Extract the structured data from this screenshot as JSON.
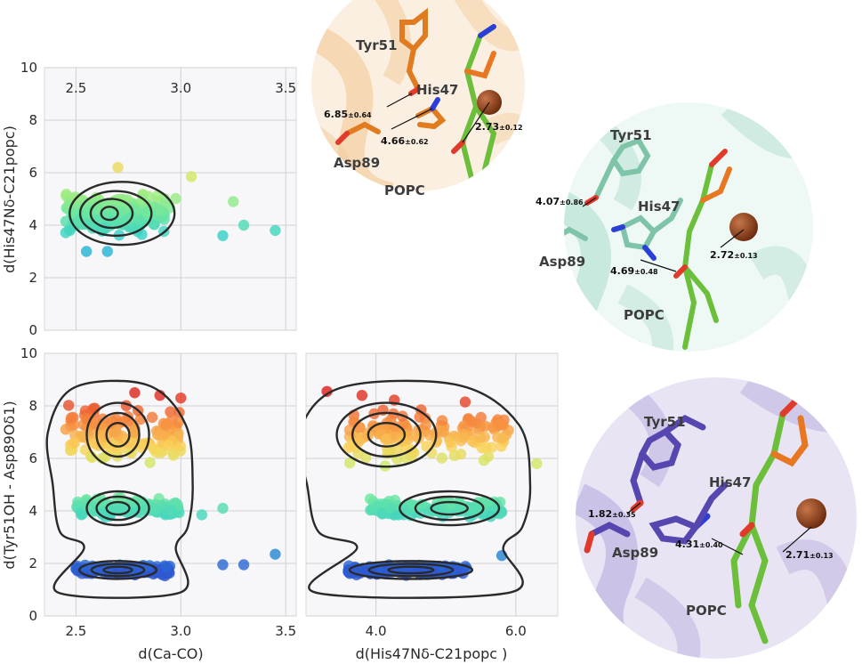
{
  "chart_data": [
    {
      "type": "scatter",
      "panel": "top-left",
      "xlabel": "",
      "ylabel": "d(His47Nδ-C21popc)",
      "xlim": [
        2.35,
        3.55
      ],
      "ylim": [
        0,
        10
      ],
      "xticks": [
        2.5,
        3.0,
        3.5
      ],
      "yticks": [
        0,
        2,
        4,
        6,
        8,
        10
      ],
      "grid": true,
      "dense_region": {
        "x": [
          2.45,
          3.0
        ],
        "y": [
          3.2,
          5.6
        ]
      },
      "outliers": [
        [
          2.7,
          6.2
        ],
        [
          3.05,
          5.85
        ],
        [
          3.25,
          4.9
        ],
        [
          3.2,
          3.6
        ],
        [
          3.45,
          3.8
        ],
        [
          3.3,
          4.0
        ],
        [
          2.55,
          3.0
        ],
        [
          2.65,
          3.0
        ]
      ],
      "kde_levels": [
        {
          "cx": 2.72,
          "cy": 4.45,
          "rx": 0.25,
          "ry": 1.2
        },
        {
          "cx": 2.69,
          "cy": 4.45,
          "rx": 0.17,
          "ry": 0.85
        },
        {
          "cx": 2.67,
          "cy": 4.45,
          "rx": 0.1,
          "ry": 0.55
        },
        {
          "cx": 2.66,
          "cy": 4.45,
          "rx": 0.04,
          "ry": 0.25
        }
      ]
    },
    {
      "type": "scatter",
      "panel": "bottom-left",
      "xlabel": "d(Ca-CO)",
      "ylabel": "d(Tyr51OH - Asp89Oδ1)",
      "xlim": [
        2.35,
        3.55
      ],
      "ylim": [
        0,
        10
      ],
      "xticks": [
        2.5,
        3.0,
        3.5
      ],
      "yticks": [
        0,
        2,
        4,
        6,
        8,
        10
      ],
      "grid": true,
      "clusters": [
        {
          "y": 1.75,
          "x": [
            2.5,
            2.95
          ],
          "spread": 0.25
        },
        {
          "y": 4.1,
          "x": [
            2.5,
            3.0
          ],
          "spread": 0.45
        },
        {
          "y": 6.9,
          "x": [
            2.45,
            3.0
          ],
          "spread": 1.3
        }
      ],
      "outliers": [
        [
          2.78,
          8.5
        ],
        [
          2.9,
          8.4
        ],
        [
          3.0,
          8.3
        ],
        [
          3.45,
          2.35
        ],
        [
          3.3,
          1.95
        ],
        [
          3.2,
          1.95
        ],
        [
          3.2,
          4.1
        ],
        [
          3.1,
          3.85
        ]
      ],
      "kde_outline_levels": 4
    },
    {
      "type": "scatter",
      "panel": "bottom-middle",
      "xlabel": "d(His47Nδ-C21popc )",
      "ylabel": "",
      "xlim": [
        3.0,
        6.6
      ],
      "ylim": [
        0,
        10
      ],
      "xticks": [
        4.0,
        6.0
      ],
      "yticks": [
        0,
        2,
        4,
        6,
        8,
        10
      ],
      "grid": true,
      "clusters": [
        {
          "y": 1.75,
          "x": [
            3.6,
            5.3
          ],
          "spread": 0.25
        },
        {
          "y": 4.1,
          "x": [
            3.9,
            5.8
          ],
          "spread": 0.45
        },
        {
          "y": 6.9,
          "x": [
            3.6,
            5.9
          ],
          "spread": 1.3
        }
      ],
      "outliers": [
        [
          3.3,
          8.55
        ],
        [
          3.8,
          8.4
        ],
        [
          6.3,
          5.8
        ],
        [
          5.8,
          2.3
        ],
        [
          4.2,
          4.1
        ]
      ],
      "kde_outline_levels": 4
    }
  ],
  "molecular_panels": [
    {
      "name": "orange",
      "labels": {
        "tyr": "Tyr51",
        "his": "His47",
        "asp": "Asp89",
        "popc": "POPC"
      },
      "distances": [
        {
          "value": "6.85",
          "err": "±0.64"
        },
        {
          "value": "4.66",
          "err": "±0.62"
        },
        {
          "value": "2.73",
          "err": "±0.12"
        }
      ],
      "colors": {
        "residue": "#e07b1f",
        "ribbon": "#f3cfa2",
        "background": "#fbefe2"
      }
    },
    {
      "name": "teal",
      "labels": {
        "tyr": "Tyr51",
        "his": "His47",
        "asp": "Asp89",
        "popc": "POPC"
      },
      "distances": [
        {
          "value": "4.07",
          "err": "±0.86"
        },
        {
          "value": "4.69",
          "err": "±0.48"
        },
        {
          "value": "2.72",
          "err": "±0.13"
        }
      ],
      "colors": {
        "residue": "#7fc4a8",
        "ribbon": "#b8e2d4",
        "background": "#eef8f4"
      }
    },
    {
      "name": "purple",
      "labels": {
        "tyr": "Tyr51",
        "his": "His47",
        "asp": "Asp89",
        "popc": "POPC"
      },
      "distances": [
        {
          "value": "1.82",
          "err": "±0.35"
        },
        {
          "value": "4.31",
          "err": "±0.40"
        },
        {
          "value": "2.71",
          "err": "±0.13"
        }
      ],
      "colors": {
        "residue": "#5646b0",
        "ribbon": "#b7abde",
        "background": "#e9e4f4"
      }
    }
  ],
  "colors": {
    "popc": "#6cbf3a",
    "phosphate": "#e87722",
    "calcium": "#8a3b12",
    "nitrogen": "#2a3fd6",
    "oxygen": "#e03a2a"
  }
}
